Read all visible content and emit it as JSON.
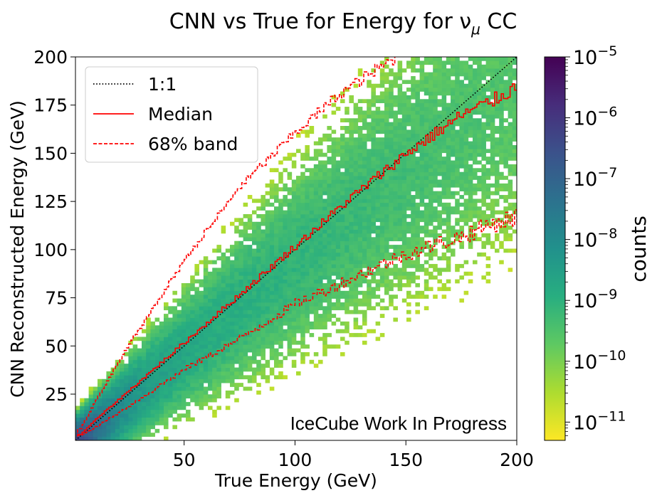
{
  "chart_data": {
    "type": "heatmap",
    "title": "CNN vs True for Energy  for ν",
    "title_subscript": "μ",
    "title_suffix": " CC",
    "xlabel": "True Energy (GeV)",
    "ylabel": "CNN Reconstructed Energy (GeV)",
    "xlim": [
      1,
      200
    ],
    "ylim": [
      1,
      200
    ],
    "xticks": [
      50,
      100,
      150,
      200
    ],
    "yticks": [
      25,
      50,
      75,
      100,
      125,
      150,
      175,
      200
    ],
    "grid": false,
    "colorbar": {
      "label": "counts",
      "scale": "log",
      "range_exponent": [
        -11.3,
        -5
      ],
      "ticks": [
        {
          "exp": -5,
          "label": "10",
          "sup": "−5"
        },
        {
          "exp": -6,
          "label": "10",
          "sup": "−6"
        },
        {
          "exp": -7,
          "label": "10",
          "sup": "−7"
        },
        {
          "exp": -8,
          "label": "10",
          "sup": "−8"
        },
        {
          "exp": -9,
          "label": "10",
          "sup": "−9"
        },
        {
          "exp": -10,
          "label": "10",
          "sup": "−10"
        },
        {
          "exp": -11,
          "label": "10",
          "sup": "−11"
        }
      ],
      "colormap": "viridis_r"
    },
    "legend": {
      "placement": "top-left",
      "entries": [
        {
          "label": "1:1",
          "style": "dotted",
          "color": "#000000"
        },
        {
          "label": "Median",
          "style": "solid",
          "color": "#ff0000"
        },
        {
          "label": "68% band",
          "style": "dashed",
          "color": "#ff0000"
        }
      ]
    },
    "series": [
      {
        "name": "1:1",
        "x": [
          1,
          200
        ],
        "y": [
          1,
          200
        ]
      },
      {
        "name": "Median",
        "x": [
          2,
          10,
          25,
          50,
          75,
          100,
          125,
          150,
          175,
          190,
          200
        ],
        "y": [
          3,
          12,
          27,
          52,
          77,
          102,
          127,
          150,
          170,
          178,
          185
        ]
      },
      {
        "name": "68% band upper",
        "x": [
          2,
          10,
          25,
          50,
          75,
          100,
          120,
          140,
          145
        ],
        "y": [
          5,
          22,
          51,
          95,
          133,
          161,
          181,
          196,
          200
        ]
      },
      {
        "name": "68% band lower",
        "x": [
          2,
          10,
          25,
          50,
          75,
          100,
          125,
          150,
          175,
          190,
          200
        ],
        "y": [
          3,
          8,
          19,
          38,
          54,
          72,
          85,
          98,
          107,
          114,
          117
        ]
      }
    ],
    "annotation": {
      "text": "IceCube Work In Progress",
      "color": "#ee3d1e",
      "placement": "bottom-right"
    }
  }
}
